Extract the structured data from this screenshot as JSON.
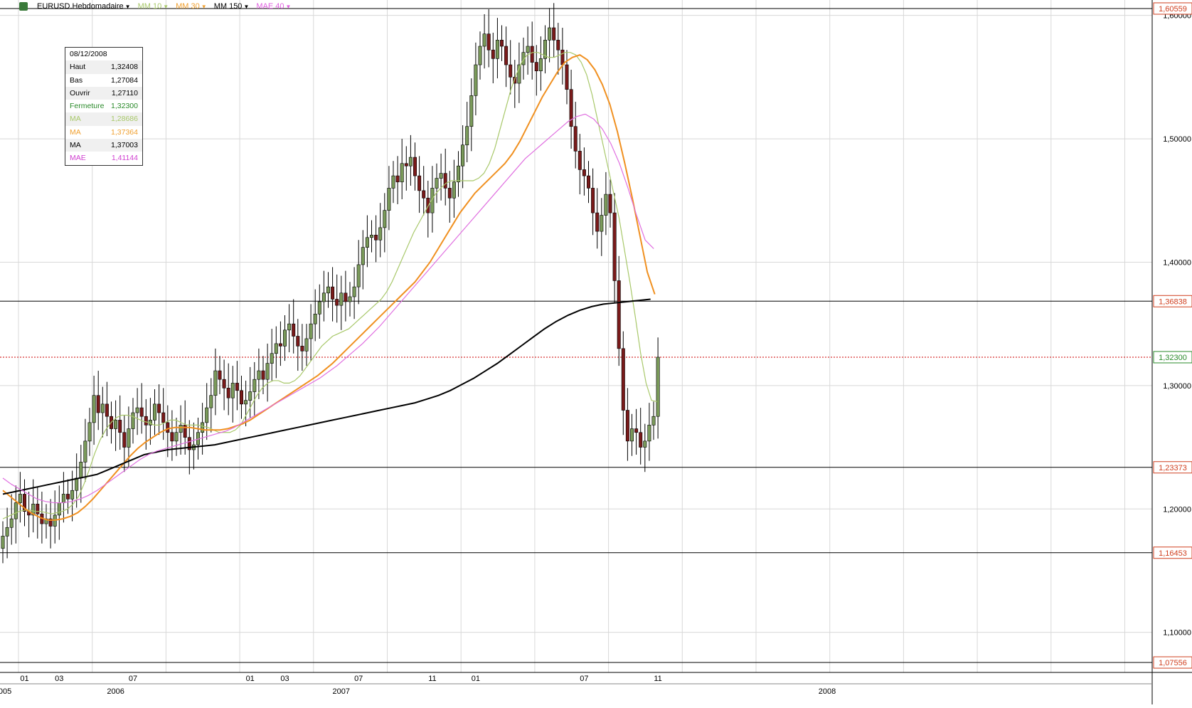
{
  "toolbar": {
    "instrument": "EURUSD.Hebdomadaire",
    "indicators": [
      {
        "label": "MM 10",
        "color": "#a8c86a"
      },
      {
        "label": "MM 30",
        "color": "#f0a030"
      },
      {
        "label": "MM 150",
        "color": "#000000"
      },
      {
        "label": "MAE 40",
        "color": "#e060e0"
      }
    ]
  },
  "info_box": {
    "date": "08/12/2008",
    "rows": [
      {
        "label": "Haut",
        "value": "1,32408",
        "color": "#000000"
      },
      {
        "label": "Bas",
        "value": "1,27084",
        "color": "#000000"
      },
      {
        "label": "Ouvrir",
        "value": "1,27110",
        "color": "#000000"
      },
      {
        "label": "Fermeture",
        "value": "1,32300",
        "color": "#2a8a2a"
      },
      {
        "label": "MA",
        "value": "1,28686",
        "color": "#a8c86a"
      },
      {
        "label": "MA",
        "value": "1,37364",
        "color": "#f0a030"
      },
      {
        "label": "MA",
        "value": "1,37003",
        "color": "#000000"
      },
      {
        "label": "MAE",
        "value": "1,41144",
        "color": "#d040d0"
      }
    ]
  },
  "chart_data": {
    "type": "candlestick",
    "ylim": [
      1.0675,
      1.6125
    ],
    "y_ticks": [
      "1,10000",
      "1,20000",
      "1,30000",
      "1,40000",
      "1,50000",
      "1,60000"
    ],
    "y_tick_values": [
      1.1,
      1.2,
      1.3,
      1.4,
      1.5,
      1.6
    ],
    "horizontal_levels": [
      {
        "value": 1.60559,
        "label": "1,60559",
        "style": "solid",
        "color": "#000000",
        "label_color": "#d04020"
      },
      {
        "value": 1.36838,
        "label": "1,36838",
        "style": "solid",
        "color": "#000000",
        "label_color": "#d04020"
      },
      {
        "value": 1.23373,
        "label": "1,23373",
        "style": "solid",
        "color": "#000000",
        "label_color": "#d04020"
      },
      {
        "value": 1.16453,
        "label": "1,16453",
        "style": "solid",
        "color": "#000000",
        "label_color": "#d04020"
      },
      {
        "value": 1.07556,
        "label": "1,07556",
        "style": "solid",
        "color": "#000000",
        "label_color": "#d04020"
      },
      {
        "value": 1.323,
        "label": "1,32300",
        "style": "dotted",
        "color": "#cc0000",
        "label_color": "#2a8a2a"
      }
    ],
    "x_month_labels": [
      {
        "label": "01",
        "week": 5
      },
      {
        "label": "03",
        "week": 13
      },
      {
        "label": "07",
        "week": 30
      },
      {
        "label": "01",
        "week": 57
      },
      {
        "label": "03",
        "week": 65
      },
      {
        "label": "07",
        "week": 82
      },
      {
        "label": "11",
        "week": 99
      },
      {
        "label": "01",
        "week": 109
      },
      {
        "label": "07",
        "week": 134
      },
      {
        "label": "11",
        "week": 151
      }
    ],
    "x_year_labels": [
      {
        "label": "2005",
        "week": 0
      },
      {
        "label": "2006",
        "week": 26
      },
      {
        "label": "2007",
        "week": 78
      },
      {
        "label": "2008",
        "week": 190
      }
    ],
    "weeks_total": 270,
    "close": [
      1.178,
      1.185,
      1.192,
      1.205,
      1.212,
      1.198,
      1.195,
      1.204,
      1.196,
      1.188,
      1.192,
      1.186,
      1.195,
      1.205,
      1.212,
      1.208,
      1.215,
      1.225,
      1.238,
      1.255,
      1.27,
      1.292,
      1.278,
      1.285,
      1.275,
      1.265,
      1.272,
      1.262,
      1.25,
      1.265,
      1.278,
      1.282,
      1.275,
      1.268,
      1.272,
      1.285,
      1.278,
      1.27,
      1.262,
      1.255,
      1.262,
      1.268,
      1.258,
      1.248,
      1.252,
      1.262,
      1.27,
      1.282,
      1.292,
      1.312,
      1.305,
      1.298,
      1.29,
      1.302,
      1.296,
      1.285,
      1.288,
      1.295,
      1.305,
      1.312,
      1.305,
      1.318,
      1.326,
      1.334,
      1.332,
      1.345,
      1.35,
      1.34,
      1.332,
      1.328,
      1.338,
      1.35,
      1.358,
      1.368,
      1.375,
      1.38,
      1.37,
      1.365,
      1.375,
      1.368,
      1.372,
      1.38,
      1.398,
      1.412,
      1.42,
      1.422,
      1.418,
      1.428,
      1.442,
      1.46,
      1.47,
      1.465,
      1.48,
      1.478,
      1.485,
      1.47,
      1.458,
      1.452,
      1.44,
      1.46,
      1.468,
      1.472,
      1.46,
      1.452,
      1.465,
      1.478,
      1.495,
      1.51,
      1.535,
      1.56,
      1.575,
      1.585,
      1.572,
      1.565,
      1.58,
      1.575,
      1.56,
      1.55,
      1.545,
      1.56,
      1.57,
      1.575,
      1.562,
      1.555,
      1.565,
      1.58,
      1.59,
      1.58,
      1.572,
      1.56,
      1.54,
      1.51,
      1.49,
      1.475,
      1.47,
      1.46,
      1.44,
      1.425,
      1.438,
      1.455,
      1.44,
      1.385,
      1.33,
      1.28,
      1.255,
      1.265,
      1.262,
      1.25,
      1.255,
      1.268,
      1.275,
      1.323
    ],
    "ma10": [
      1.192,
      1.194,
      1.196,
      1.198,
      1.199,
      1.199,
      1.198,
      1.198,
      1.197,
      1.196,
      1.197,
      1.198,
      1.2,
      1.204,
      1.21,
      1.22,
      1.232,
      1.245,
      1.256,
      1.264,
      1.27,
      1.274,
      1.276,
      1.276,
      1.275,
      1.273,
      1.271,
      1.27,
      1.268,
      1.268,
      1.27,
      1.272,
      1.272,
      1.27,
      1.268,
      1.268,
      1.268,
      1.267,
      1.266,
      1.264,
      1.262,
      1.262,
      1.262,
      1.264,
      1.268,
      1.276,
      1.284,
      1.292,
      1.298,
      1.302,
      1.304,
      1.304,
      1.302,
      1.302,
      1.304,
      1.308,
      1.314,
      1.32,
      1.326,
      1.332,
      1.336,
      1.34,
      1.342,
      1.344,
      1.346,
      1.35,
      1.354,
      1.358,
      1.362,
      1.366,
      1.37,
      1.376,
      1.384,
      1.394,
      1.404,
      1.414,
      1.424,
      1.432,
      1.44,
      1.448,
      1.455,
      1.46,
      1.464,
      1.466,
      1.466,
      1.466,
      1.466,
      1.466,
      1.468,
      1.472,
      1.48,
      1.492,
      1.508,
      1.524,
      1.54,
      1.552,
      1.562,
      1.568,
      1.57,
      1.57,
      1.568,
      1.566,
      1.566,
      1.568,
      1.57,
      1.57,
      1.568,
      1.562,
      1.552,
      1.536,
      1.516,
      1.496,
      1.476,
      1.456,
      1.436,
      1.41,
      1.384,
      1.356,
      1.326,
      1.302,
      1.288,
      1.287
    ],
    "ma10_start": 0,
    "ma30": [
      1.215,
      1.21,
      1.205,
      1.2,
      1.196,
      1.193,
      1.191,
      1.191,
      1.192,
      1.194,
      1.197,
      1.202,
      1.208,
      1.215,
      1.222,
      1.229,
      1.236,
      1.243,
      1.249,
      1.254,
      1.258,
      1.262,
      1.265,
      1.266,
      1.266,
      1.266,
      1.265,
      1.264,
      1.264,
      1.264,
      1.265,
      1.267,
      1.269,
      1.272,
      1.276,
      1.28,
      1.284,
      1.288,
      1.292,
      1.296,
      1.3,
      1.304,
      1.308,
      1.313,
      1.318,
      1.324,
      1.33,
      1.336,
      1.342,
      1.348,
      1.354,
      1.36,
      1.366,
      1.372,
      1.378,
      1.384,
      1.392,
      1.4,
      1.41,
      1.42,
      1.43,
      1.44,
      1.448,
      1.456,
      1.462,
      1.468,
      1.474,
      1.48,
      1.488,
      1.498,
      1.51,
      1.522,
      1.534,
      1.544,
      1.554,
      1.562,
      1.566,
      1.568,
      1.564,
      1.556,
      1.544,
      1.528,
      1.506,
      1.48,
      1.452,
      1.422,
      1.392,
      1.374
    ],
    "ma30_start": 0,
    "ma150": [
      1.212,
      1.214,
      1.216,
      1.218,
      1.22,
      1.222,
      1.224,
      1.226,
      1.228,
      1.232,
      1.236,
      1.24,
      1.244,
      1.246,
      1.248,
      1.249,
      1.25,
      1.251,
      1.252,
      1.254,
      1.256,
      1.258,
      1.26,
      1.262,
      1.264,
      1.266,
      1.268,
      1.27,
      1.272,
      1.274,
      1.276,
      1.278,
      1.28,
      1.282,
      1.284,
      1.286,
      1.289,
      1.292,
      1.296,
      1.301,
      1.306,
      1.312,
      1.318,
      1.325,
      1.332,
      1.339,
      1.346,
      1.352,
      1.357,
      1.361,
      1.364,
      1.366,
      1.367,
      1.368,
      1.369,
      1.37
    ],
    "mae40": [
      1.225,
      1.22,
      1.216,
      1.212,
      1.208,
      1.206,
      1.205,
      1.205,
      1.206,
      1.208,
      1.211,
      1.215,
      1.22,
      1.225,
      1.23,
      1.235,
      1.24,
      1.244,
      1.247,
      1.249,
      1.251,
      1.253,
      1.255,
      1.257,
      1.259,
      1.261,
      1.263,
      1.266,
      1.27,
      1.274,
      1.278,
      1.282,
      1.286,
      1.29,
      1.294,
      1.298,
      1.302,
      1.306,
      1.311,
      1.316,
      1.322,
      1.328,
      1.334,
      1.341,
      1.348,
      1.356,
      1.364,
      1.372,
      1.38,
      1.388,
      1.396,
      1.404,
      1.412,
      1.42,
      1.428,
      1.436,
      1.444,
      1.452,
      1.46,
      1.468,
      1.476,
      1.484,
      1.49,
      1.496,
      1.502,
      1.508,
      1.514,
      1.518,
      1.52,
      1.516,
      1.508,
      1.496,
      1.48,
      1.46,
      1.438,
      1.418,
      1.411
    ]
  }
}
